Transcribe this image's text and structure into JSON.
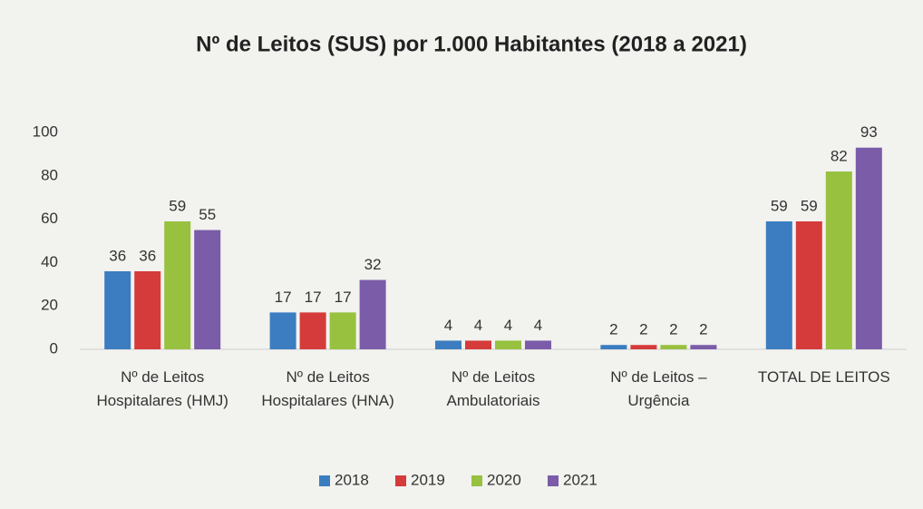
{
  "chart_data": {
    "type": "bar",
    "title": "Nº de Leitos (SUS) por 1.000 Habitantes (2018 a 2021)",
    "categories": [
      "Nº de Leitos Hospitalares (HMJ)",
      "Nº de Leitos Hospitalares (HNA)",
      "Nº de Leitos Ambulatoriais",
      "Nº de Leitos – Urgência",
      "TOTAL DE LEITOS"
    ],
    "series": [
      {
        "name": "2018",
        "color": "#3b7dc0",
        "values": [
          36,
          17,
          4,
          2,
          59
        ]
      },
      {
        "name": "2019",
        "color": "#d53b3b",
        "values": [
          36,
          17,
          4,
          2,
          59
        ]
      },
      {
        "name": "2020",
        "color": "#97c13f",
        "values": [
          59,
          17,
          4,
          2,
          82
        ]
      },
      {
        "name": "2021",
        "color": "#7a5ca8",
        "values": [
          55,
          32,
          4,
          2,
          93
        ]
      }
    ],
    "ylim": [
      0,
      100
    ],
    "yticks": [
      0,
      20,
      40,
      60,
      80,
      100
    ],
    "grid": false,
    "legend": "bottom"
  }
}
